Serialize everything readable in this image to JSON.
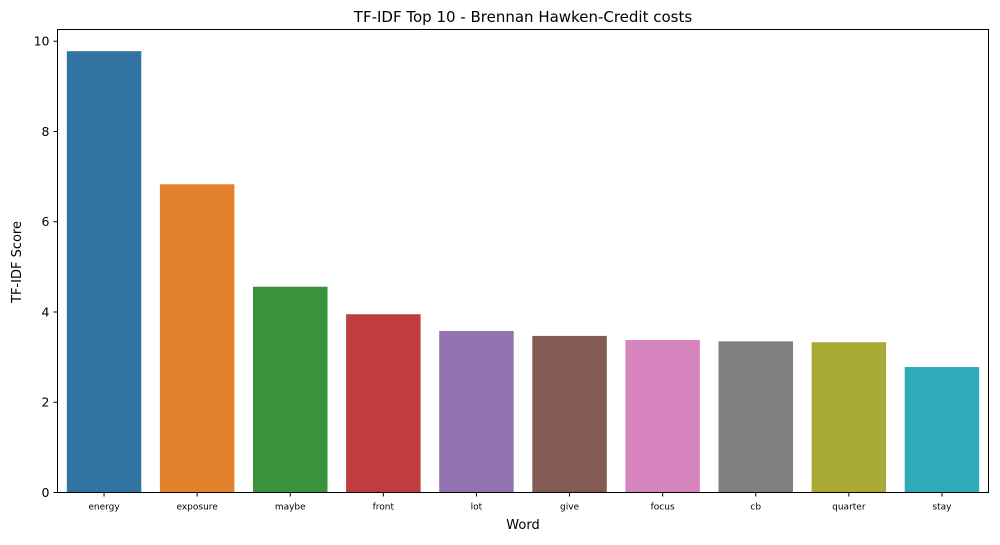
{
  "chart_data": {
    "type": "bar",
    "title": "TF-IDF Top 10 - Brennan Hawken-Credit costs",
    "xlabel": "Word",
    "ylabel": "TF-IDF Score",
    "categories": [
      "energy",
      "exposure",
      "maybe",
      "front",
      "lot",
      "give",
      "focus",
      "cb",
      "quarter",
      "stay"
    ],
    "values": [
      9.78,
      6.83,
      4.56,
      3.95,
      3.58,
      3.47,
      3.38,
      3.35,
      3.33,
      2.78
    ],
    "colors": [
      "#3274a1",
      "#e1812c",
      "#3a923a",
      "#c03d3e",
      "#9372b2",
      "#845b53",
      "#d684bd",
      "#7f7f7f",
      "#a9aa35",
      "#2eaab8"
    ],
    "ylim": [
      0,
      10.26
    ],
    "yticks": [
      0,
      2,
      4,
      6,
      8,
      10
    ],
    "grid": false,
    "legend": "none"
  }
}
